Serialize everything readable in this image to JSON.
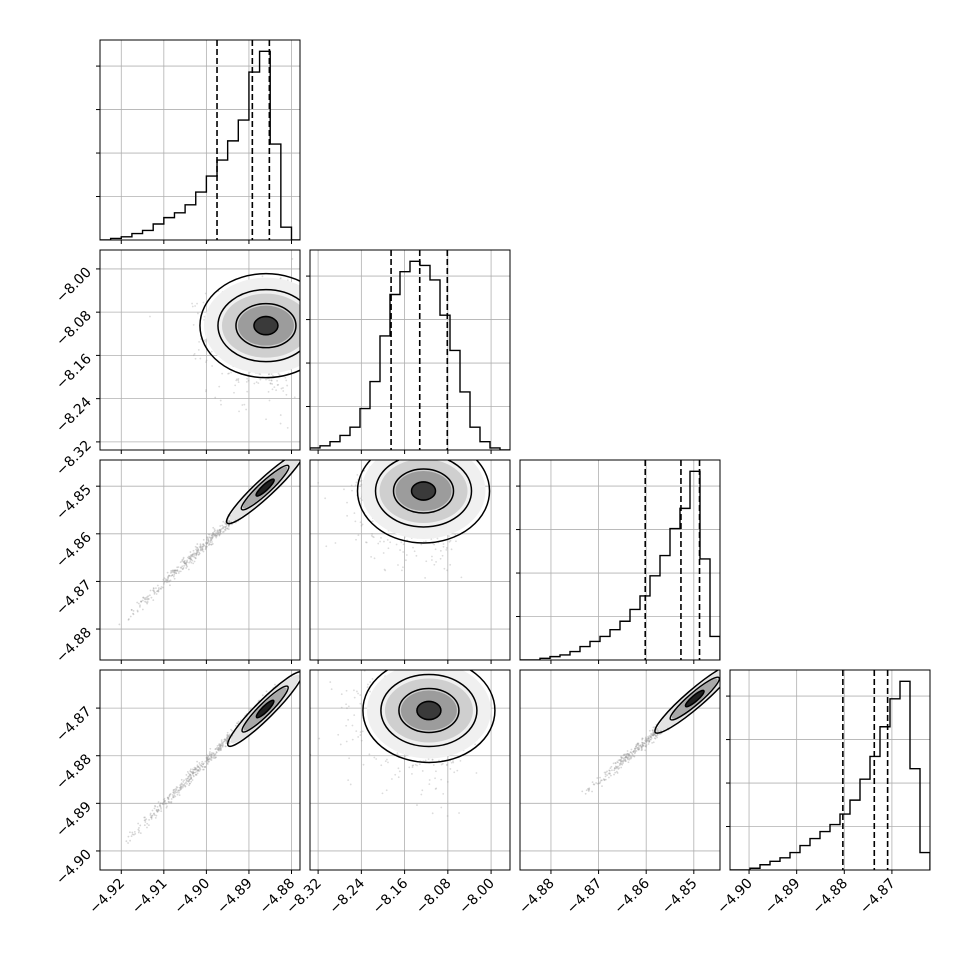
{
  "chart_data": {
    "type": "corner",
    "n_params": 4,
    "grid": true,
    "hist_bins": 20,
    "quantiles": [
      0.16,
      0.5,
      0.84
    ],
    "colors": {
      "line": "#000000",
      "grid": "#b0b0b0",
      "points": "#9a9a9a",
      "frame": "#000000"
    },
    "params": [
      {
        "range": [
          -4.925,
          -4.878
        ],
        "ticks": [
          -4.92,
          -4.91,
          -4.9,
          -4.89,
          -4.88
        ],
        "tick_labels": [
          "−4.92",
          "−4.91",
          "−4.90",
          "−4.89",
          "−4.88"
        ],
        "quantile_values": [
          -4.8975,
          -4.8892,
          -4.8852
        ],
        "hist_edges": [
          -4.925,
          -4.9225,
          -4.92,
          -4.9175,
          -4.915,
          -4.9125,
          -4.91,
          -4.9075,
          -4.905,
          -4.9025,
          -4.9,
          -4.8975,
          -4.895,
          -4.8925,
          -4.89,
          -4.8875,
          -4.885,
          -4.8825,
          -4.88,
          -4.8775
        ],
        "hist_counts": [
          0,
          1,
          2,
          4,
          6,
          10,
          14,
          17,
          22,
          30,
          40,
          50,
          62,
          75,
          105,
          118,
          60,
          8,
          0
        ]
      },
      {
        "range": [
          -8.335,
          -7.965
        ],
        "ticks": [
          -8.32,
          -8.24,
          -8.16,
          -8.08,
          -8.0
        ],
        "tick_labels": [
          "−8.32",
          "−8.24",
          "−8.16",
          "−8.08",
          "−8.00"
        ],
        "quantile_values": [
          -8.185,
          -8.132,
          -8.081
        ],
        "hist_edges": [
          -8.335,
          -8.3165,
          -8.298,
          -8.2795,
          -8.261,
          -8.2425,
          -8.224,
          -8.2055,
          -8.187,
          -8.1685,
          -8.15,
          -8.1315,
          -8.113,
          -8.0945,
          -8.076,
          -8.0575,
          -8.039,
          -8.0205,
          -8.002,
          -7.9835,
          -7.965
        ],
        "hist_counts": [
          1,
          2,
          4,
          7,
          11,
          20,
          33,
          55,
          75,
          86,
          91,
          89,
          82,
          65,
          48,
          28,
          11,
          4,
          1,
          0
        ]
      },
      {
        "range": [
          -4.8865,
          -4.8445
        ],
        "ticks": [
          -4.88,
          -4.87,
          -4.86,
          -4.85
        ],
        "tick_labels": [
          "−4.88",
          "−4.87",
          "−4.86",
          "−4.85"
        ],
        "quantile_values": [
          -4.8602,
          -4.8527,
          -4.8488
        ],
        "hist_edges": [
          -4.8865,
          -4.8844,
          -4.8823,
          -4.8802,
          -4.8781,
          -4.876,
          -4.8739,
          -4.8718,
          -4.8697,
          -4.8676,
          -4.8655,
          -4.8634,
          -4.8613,
          -4.8592,
          -4.8571,
          -4.855,
          -4.8529,
          -4.8508,
          -4.8487,
          -4.8466,
          -4.8445
        ],
        "hist_counts": [
          0,
          0,
          1,
          2,
          3,
          5,
          8,
          11,
          14,
          18,
          23,
          30,
          38,
          50,
          62,
          78,
          90,
          112,
          60,
          14
        ]
      },
      {
        "range": [
          -4.904,
          -4.862
        ],
        "ticks": [
          -4.9,
          -4.89,
          -4.88,
          -4.87
        ],
        "tick_labels": [
          "−4.90",
          "−4.89",
          "−4.88",
          "−4.87"
        ],
        "quantile_values": [
          -4.8803,
          -4.8737,
          -4.8709
        ],
        "hist_edges": [
          -4.904,
          -4.9019,
          -4.8998,
          -4.8977,
          -4.8956,
          -4.8935,
          -4.8914,
          -4.8893,
          -4.8872,
          -4.8851,
          -4.883,
          -4.8809,
          -4.8788,
          -4.8767,
          -4.8746,
          -4.8725,
          -4.8704,
          -4.8683,
          -4.8662,
          -4.8641,
          -4.862
        ],
        "hist_counts": [
          0,
          0,
          1,
          3,
          5,
          7,
          10,
          14,
          18,
          22,
          26,
          32,
          40,
          52,
          65,
          82,
          98,
          108,
          58,
          10
        ]
      }
    ],
    "pairs": [
      {
        "row": 1,
        "col": 0,
        "kind": "blob",
        "center": [
          -4.886,
          -8.105
        ],
        "spread": [
          0.005,
          0.045
        ]
      },
      {
        "row": 2,
        "col": 0,
        "kind": "line",
        "from": [
          -4.921,
          -4.8795
        ],
        "to": [
          -4.8825,
          -4.8475
        ],
        "mode": [
          -4.8862,
          -4.8503
        ]
      },
      {
        "row": 2,
        "col": 1,
        "kind": "blob",
        "center": [
          -8.125,
          -4.851
        ],
        "spread": [
          0.045,
          0.0045
        ]
      },
      {
        "row": 3,
        "col": 0,
        "kind": "line",
        "from": [
          -4.921,
          -4.8998
        ],
        "to": [
          -4.8825,
          -4.8655
        ],
        "mode": [
          -4.8862,
          -4.8702
        ]
      },
      {
        "row": 3,
        "col": 1,
        "kind": "blob",
        "center": [
          -8.115,
          -4.8705
        ],
        "spread": [
          0.045,
          0.0045
        ]
      },
      {
        "row": 3,
        "col": 2,
        "kind": "line",
        "from": [
          -4.8735,
          -4.8885
        ],
        "to": [
          -4.845,
          -4.864
        ],
        "mode": [
          -4.8498,
          -4.868
        ]
      }
    ]
  }
}
